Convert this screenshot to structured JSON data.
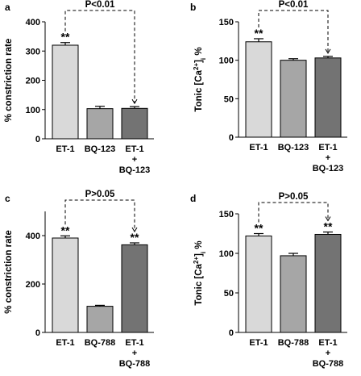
{
  "colors": {
    "light": "#d9d9d9",
    "mid": "#a6a6a6",
    "dark": "#737373",
    "ink": "#000000"
  },
  "chart_data": [
    {
      "panel": "a",
      "type": "bar",
      "ylabel": "% constriction rate",
      "ylabel_kind": "plain",
      "ylim": [
        0,
        400
      ],
      "ticks": [
        0,
        100,
        200,
        300,
        400
      ],
      "categories": [
        [
          "ET-1"
        ],
        [
          "BQ-123"
        ],
        [
          "ET-1",
          "+",
          "BQ-123"
        ]
      ],
      "values": [
        320,
        103,
        104
      ],
      "errors": [
        9,
        8,
        6
      ],
      "fills": [
        "light",
        "mid",
        "dark"
      ],
      "stars": [
        "**",
        "",
        ""
      ],
      "comparison": {
        "from": 0,
        "to": 2,
        "label": "P<0.01"
      }
    },
    {
      "panel": "b",
      "type": "bar",
      "ylabel": "Tonic [Ca2+]i %",
      "ylabel_kind": "calcium",
      "ylim": [
        0,
        150
      ],
      "ticks": [
        0,
        50,
        100,
        150
      ],
      "categories": [
        [
          "ET-1"
        ],
        [
          "BQ-123"
        ],
        [
          "ET-1",
          "+",
          "BQ-123"
        ]
      ],
      "values": [
        124,
        100,
        103
      ],
      "errors": [
        4,
        2,
        2
      ],
      "fills": [
        "light",
        "mid",
        "dark"
      ],
      "stars": [
        "**",
        "",
        ""
      ],
      "comparison": {
        "from": 0,
        "to": 2,
        "label": "P<0.01"
      }
    },
    {
      "panel": "c",
      "type": "bar",
      "ylabel": "% constriction rate",
      "ylabel_kind": "plain",
      "ylim": [
        0,
        500
      ],
      "ticks": [
        0,
        200,
        400
      ],
      "categories": [
        [
          "ET-1"
        ],
        [
          "BQ-788"
        ],
        [
          "ET-1",
          "+",
          "BQ-788"
        ]
      ],
      "values": [
        390,
        108,
        362
      ],
      "errors": [
        9,
        4,
        8
      ],
      "fills": [
        "light",
        "mid",
        "dark"
      ],
      "stars": [
        "**",
        "",
        "**"
      ],
      "comparison": {
        "from": 0,
        "to": 2,
        "label": "P>0.05"
      }
    },
    {
      "panel": "d",
      "type": "bar",
      "ylabel": "Tonic [Ca2+]i %",
      "ylabel_kind": "calcium",
      "ylim": [
        0,
        150
      ],
      "ticks": [
        0,
        50,
        100,
        150
      ],
      "categories": [
        [
          "ET-1"
        ],
        [
          "BQ-788"
        ],
        [
          "ET-1",
          "+",
          "BQ-788"
        ]
      ],
      "values": [
        122,
        97,
        124
      ],
      "errors": [
        3,
        3,
        3
      ],
      "fills": [
        "light",
        "mid",
        "dark"
      ],
      "stars": [
        "**",
        "",
        "**"
      ],
      "comparison": {
        "from": 0,
        "to": 2,
        "label": "P>0.05"
      }
    }
  ]
}
